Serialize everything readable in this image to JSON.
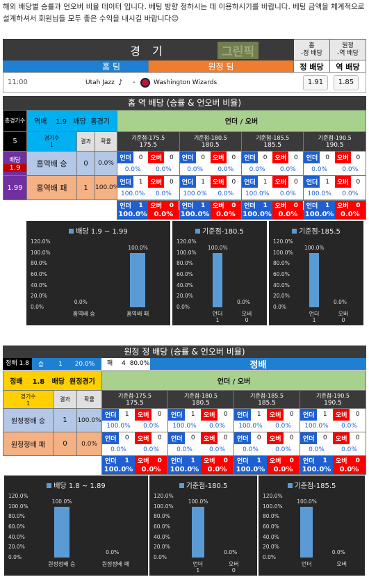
{
  "intro": "해외 배당별 승률과 언오버 비율 데이터 입니다. 베팅 방향 정하시는 데 이용하시기를 바랍니다. 베팅 금액을 체계적으로 설계하셔서 회원님들 모두 좋은 수익을 내시길 바랍니다😊",
  "match_header": {
    "game": "경 기",
    "logo_text": "그린픽",
    "home_team": "홈 팀",
    "away_team": "원정 팀",
    "col_home_top": "홈",
    "col_home_sub": "-정 배당",
    "col_home_big": "정 배당",
    "col_away_top": "원정",
    "col_away_sub": "-역 배당",
    "col_away_big": "역 배당"
  },
  "match": {
    "time": "11:00",
    "home": "Utah Jazz",
    "sep": "-",
    "away": "Washington Wizards",
    "odds_home": "1.91",
    "odds_away": "1.85"
  },
  "section1": {
    "title": "홈 역 배당 (승률 & 언오버 비율)",
    "games_label": "총경기수",
    "games": "5",
    "filter": [
      "역배",
      "1.9",
      "배당",
      "홈경기"
    ],
    "uo_header": "언더 / 오버",
    "cnt_label": "경기수",
    "cnt": "1",
    "res_label": "결과",
    "rate_label": "확률",
    "odds_label": "배당",
    "odds_lo": "1.9",
    "odds_hi": "1.99",
    "base_label": "기준점",
    "bases": [
      "-175.5",
      "-180.5",
      "-185.5",
      "-190.5"
    ],
    "base_vals": [
      "175.5",
      "180.5",
      "185.5",
      "190.5"
    ],
    "rows": [
      {
        "label": "홈역배 승",
        "count": "0",
        "pct": "0.0%",
        "uo": [
          [
            "0",
            "0",
            "0.0%",
            "0.0%"
          ],
          [
            "0",
            "0",
            "0.0%",
            "0.0%"
          ],
          [
            "0",
            "0",
            "0.0%",
            "0.0%"
          ],
          [
            "0",
            "0",
            "0.0%",
            "0.0%"
          ]
        ]
      },
      {
        "label": "홈역배 패",
        "count": "1",
        "pct": "100.0%",
        "uo": [
          [
            "1",
            "0",
            "100.0%",
            "0.0%"
          ],
          [
            "1",
            "0",
            "100.0%",
            "0.0%"
          ],
          [
            "1",
            "0",
            "100.0%",
            "0.0%"
          ],
          [
            "1",
            "0",
            "100.0%",
            "0.0%"
          ]
        ]
      }
    ],
    "totals": [
      [
        "1",
        "0",
        "100.0%",
        "0.0%"
      ],
      [
        "1",
        "0",
        "100.0%",
        "0.0%"
      ],
      [
        "1",
        "0",
        "100.0%",
        "0.0%"
      ],
      [
        "1",
        "0",
        "100.0%",
        "0.0%"
      ]
    ],
    "under": "언더",
    "over": "오버"
  },
  "section2": {
    "title": "원정 정 배당 (승률 & 언오버 비율)",
    "summary": [
      "정배 1.8",
      "승",
      "1",
      "20.0%",
      "패",
      "4",
      "80.0%"
    ],
    "summary_big": "정배",
    "filter": [
      "정배",
      "1.8",
      "배당",
      "원정경기"
    ],
    "uo_header": "언더 / 오버",
    "cnt_label": "경기수",
    "cnt": "1",
    "res_label": "결과",
    "rate_label": "확률",
    "base_label": "기준점",
    "bases": [
      "-175.5",
      "-180.5",
      "-185.5",
      "-190.5"
    ],
    "base_vals": [
      "175.5",
      "180.5",
      "185.5",
      "190.5"
    ],
    "rows": [
      {
        "label": "원정정배 승",
        "count": "1",
        "pct": "100.0%",
        "uo": [
          [
            "1",
            "0",
            "100.0%",
            "0.0%"
          ],
          [
            "1",
            "0",
            "100.0%",
            "0.0%"
          ],
          [
            "1",
            "0",
            "100.0%",
            "0.0%"
          ],
          [
            "1",
            "0",
            "100.0%",
            "0.0%"
          ]
        ]
      },
      {
        "label": "원정정배 패",
        "count": "0",
        "pct": "0.0%",
        "uo": [
          [
            "0",
            "0",
            "0.0%",
            "0.0%"
          ],
          [
            "0",
            "0",
            "0.0%",
            "0.0%"
          ],
          [
            "0",
            "0",
            "0.0%",
            "0.0%"
          ],
          [
            "0",
            "0",
            "0.0%",
            "0.0%"
          ]
        ]
      }
    ],
    "totals": [
      [
        "1",
        "0",
        "100.0%",
        "0.0%"
      ],
      [
        "1",
        "0",
        "100.0%",
        "0.0%"
      ],
      [
        "1",
        "0",
        "100.0%",
        "0.0%"
      ],
      [
        "1",
        "0",
        "100.0%",
        "0.0%"
      ]
    ],
    "under": "언더",
    "over": "오버"
  },
  "chart_data": [
    {
      "type": "bar",
      "title": "배당 1.9 ~ 1.99",
      "categories": [
        "홈역배 승",
        "홈역배 패"
      ],
      "values": [
        0,
        100
      ],
      "data_labels": [
        "0.0%",
        "100.0%"
      ],
      "ylim": [
        0,
        120
      ],
      "yticks": [
        "0.0%",
        "20.0%",
        "40.0%",
        "60.0%",
        "80.0%",
        "100.0%",
        "120.0%"
      ]
    },
    {
      "type": "bar",
      "title": "기준점-180.5",
      "categories": [
        "언더",
        "오버"
      ],
      "counts": [
        "1",
        "0"
      ],
      "values": [
        100,
        0
      ],
      "data_labels": [
        "100.0%",
        "0.0%"
      ],
      "ylim": [
        0,
        120
      ],
      "yticks": [
        "0.0%",
        "20.0%",
        "40.0%",
        "60.0%",
        "80.0%",
        "100.0%",
        "120.0%"
      ]
    },
    {
      "type": "bar",
      "title": "기준점-185.5",
      "categories": [
        "언더",
        "오버"
      ],
      "counts": [
        "1",
        "0"
      ],
      "values": [
        100,
        0
      ],
      "data_labels": [
        "100.0%",
        "0.0%"
      ],
      "ylim": [
        0,
        120
      ],
      "yticks": [
        "0.0%",
        "20.0%",
        "40.0%",
        "60.0%",
        "80.0%",
        "100.0%",
        "120.0%"
      ]
    },
    {
      "type": "bar",
      "title": "배당 1.8 ~ 1.89",
      "categories": [
        "원정정배 승",
        "원정정배 패"
      ],
      "values": [
        100,
        0
      ],
      "data_labels": [
        "100.0%",
        "0.0%"
      ],
      "ylim": [
        0,
        120
      ],
      "yticks": [
        "0.0%",
        "20.0%",
        "40.0%",
        "60.0%",
        "80.0%",
        "100.0%",
        "120.0%"
      ]
    },
    {
      "type": "bar",
      "title": "기준점-180.5",
      "categories": [
        "언더",
        "오버"
      ],
      "counts": [
        "1",
        "0"
      ],
      "values": [
        100,
        0
      ],
      "data_labels": [
        "100.0%",
        "0.0%"
      ],
      "ylim": [
        0,
        120
      ],
      "yticks": [
        "0.0%",
        "20.0%",
        "40.0%",
        "60.0%",
        "80.0%",
        "100.0%",
        "120.0%"
      ]
    },
    {
      "type": "bar",
      "title": "기준점-185.5",
      "categories": [
        "언더",
        "오버"
      ],
      "values": [
        100,
        0
      ],
      "data_labels": [
        "100.0%",
        "0.0%"
      ],
      "ylim": [
        0,
        120
      ],
      "yticks": [
        "0.0%",
        "20.0%",
        "40.0%",
        "60.0%",
        "80.0%",
        "100.0%",
        "120.0%"
      ]
    }
  ]
}
